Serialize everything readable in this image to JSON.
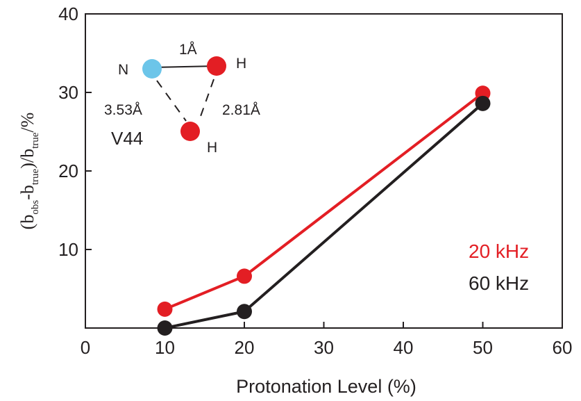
{
  "chart_data": {
    "type": "line",
    "xlabel": "Protonation Level (%)",
    "ylabel": {
      "open": "(b",
      "sub1": "obs",
      "mid": "-b",
      "sub2": "true",
      "close": ")/b",
      "sub3": "true",
      "tail": "/%"
    },
    "xlim": [
      0,
      60
    ],
    "ylim": [
      0,
      40
    ],
    "x_ticks": [
      "0",
      "10",
      "20",
      "30",
      "40",
      "50",
      "60"
    ],
    "y_ticks": [
      "10",
      "20",
      "30",
      "40"
    ],
    "series": [
      {
        "name": "20 kHz",
        "color": "#e31e24",
        "x": [
          10,
          20,
          50
        ],
        "y": [
          2.4,
          6.6,
          29.9
        ]
      },
      {
        "name": "60 kHz",
        "color": "#231f20",
        "x": [
          10,
          20,
          50
        ],
        "y": [
          0.0,
          2.1,
          28.6
        ]
      }
    ],
    "inset": {
      "atom_n": "N",
      "atom_h1": "H",
      "atom_h2": "H",
      "bond_nh": "1Å",
      "dist_n_h": "3.53Å",
      "dist_h_h": "2.81Å",
      "residue": "V44",
      "n_color": "#6cc5e9",
      "h_color": "#e31e24"
    }
  }
}
